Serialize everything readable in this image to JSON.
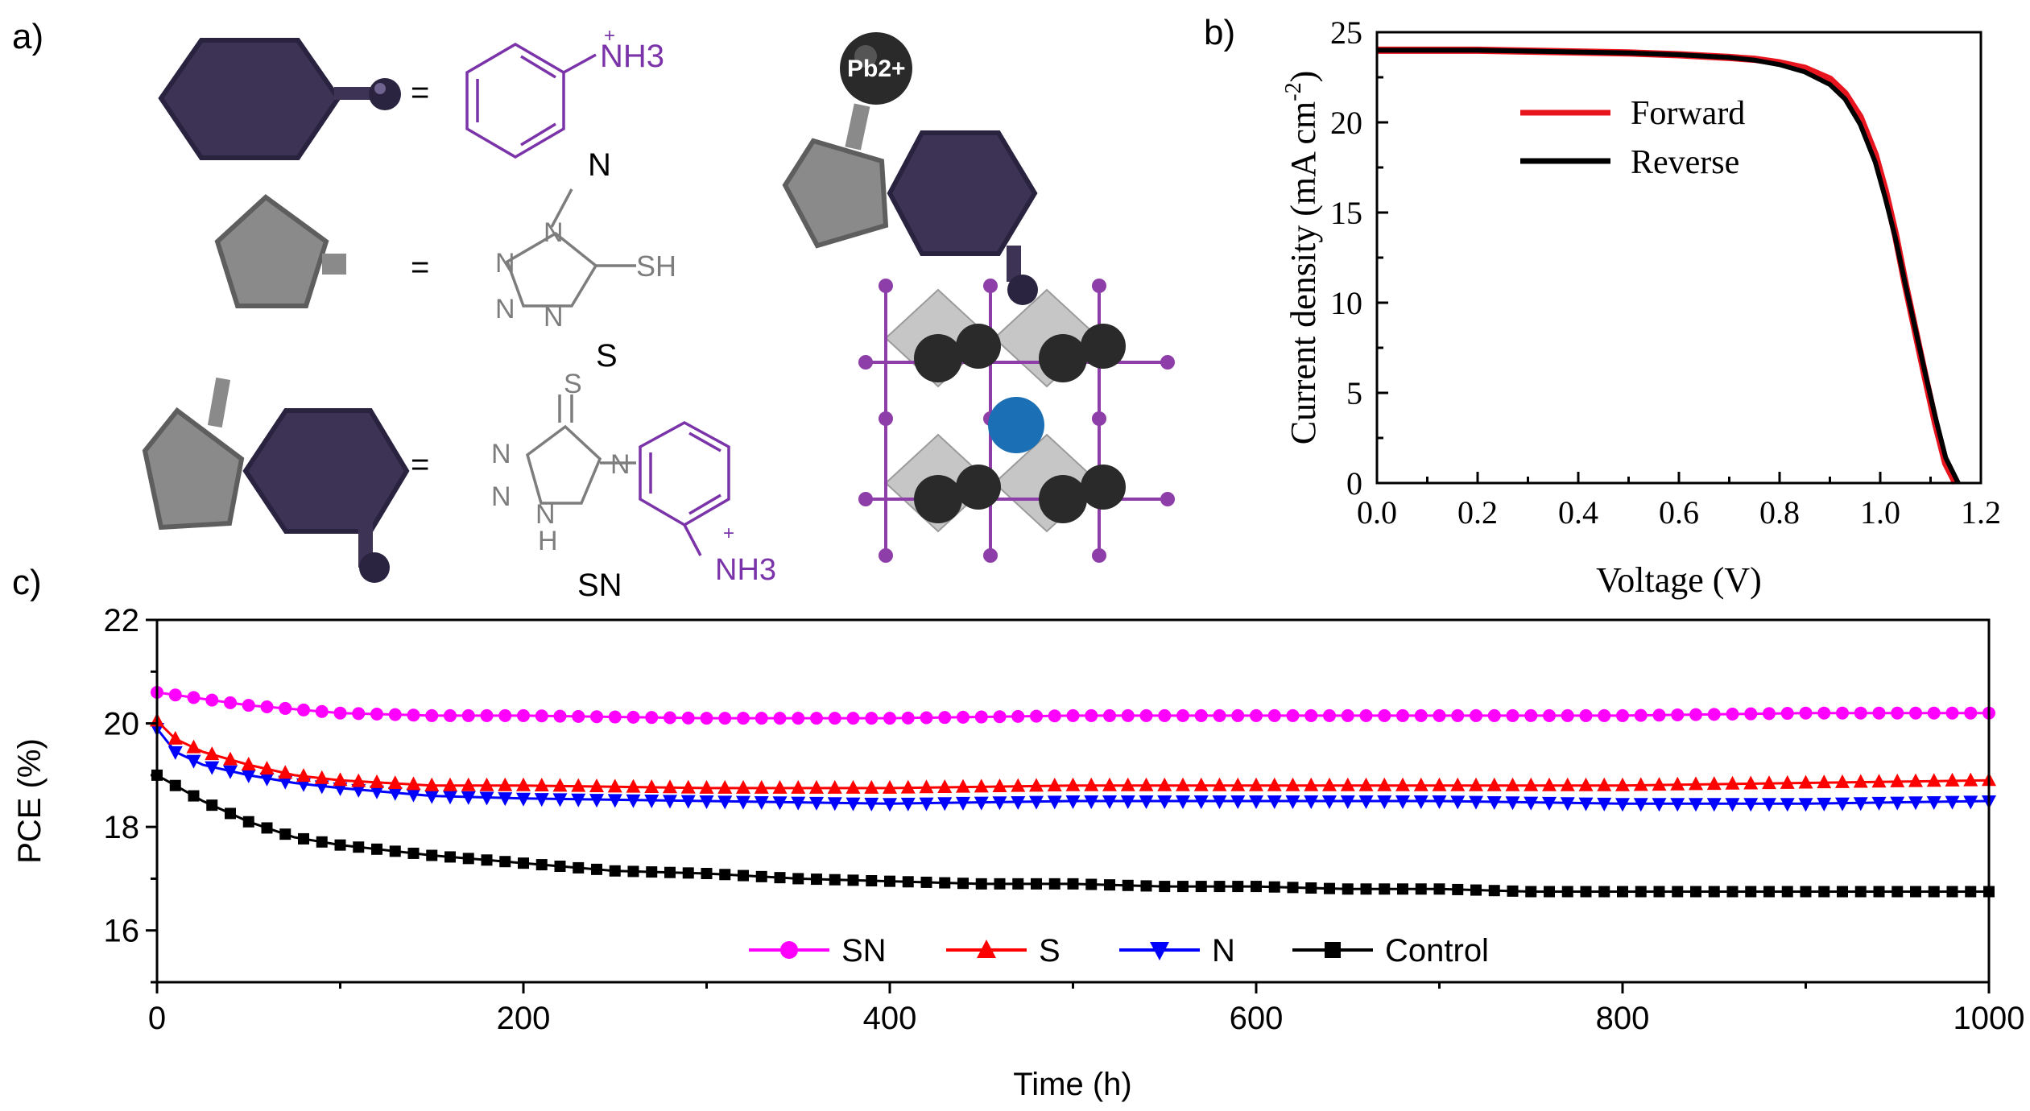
{
  "panel_labels": {
    "a": "a)",
    "b": "b)",
    "c": "c)"
  },
  "legend_a": {
    "aniline": {
      "nh3": "NH3",
      "plus": "+",
      "label": "N"
    },
    "tetrazole": {
      "ring_n": "N",
      "sh": "SH",
      "label": "S"
    },
    "hybrid": {
      "s_atom": "S",
      "ring_n": "N",
      "nh": "H",
      "nh3": "NH3",
      "plus": "+",
      "label": "SN"
    },
    "equals": "=",
    "pb_ion": "Pb2+"
  },
  "colors": {
    "purple_molecule": "#7a33a8",
    "dark_purple_block": "#3d3355",
    "gray_block": "#8a8a8a",
    "gray_structure": "#9a9a9a",
    "forward": "#e8141e",
    "reverse": "#000000",
    "sn_series": "#ff00ff",
    "s_series": "#ff0000",
    "n_series": "#0000ff",
    "control_series": "#000000",
    "octahedral_blue": "#1a6fb5"
  },
  "chart_data": [
    {
      "type": "line",
      "panel": "b",
      "xlabel": "Voltage (V)",
      "ylabel": "Current density (mA cm",
      "ylabel_sup": "-2",
      "ylabel_close": ")",
      "xlim": [
        0.0,
        1.2
      ],
      "ylim": [
        0,
        25
      ],
      "xticks": [
        "0.0",
        "0.2",
        "0.4",
        "0.6",
        "0.8",
        "1.0",
        "1.2"
      ],
      "yticks": [
        "0",
        "5",
        "10",
        "15",
        "20",
        "25"
      ],
      "legend_placement": "top-left",
      "series": [
        {
          "name": "Forward",
          "x": [
            0.0,
            0.1,
            0.2,
            0.3,
            0.4,
            0.5,
            0.6,
            0.7,
            0.75,
            0.8,
            0.85,
            0.9,
            0.93,
            0.96,
            0.99,
            1.01,
            1.03,
            1.05,
            1.07,
            1.09,
            1.11,
            1.13,
            1.15
          ],
          "y": [
            24.0,
            24.0,
            24.0,
            23.95,
            23.9,
            23.85,
            23.75,
            23.6,
            23.5,
            23.3,
            23.0,
            22.4,
            21.6,
            20.3,
            18.2,
            16.2,
            13.8,
            11.0,
            8.4,
            5.8,
            3.3,
            1.1,
            0.0
          ]
        },
        {
          "name": "Reverse",
          "x": [
            0.0,
            0.1,
            0.2,
            0.3,
            0.4,
            0.5,
            0.6,
            0.7,
            0.75,
            0.8,
            0.85,
            0.9,
            0.93,
            0.96,
            0.99,
            1.01,
            1.03,
            1.05,
            1.07,
            1.09,
            1.11,
            1.13,
            1.155
          ],
          "y": [
            24.0,
            24.0,
            24.0,
            23.95,
            23.9,
            23.85,
            23.75,
            23.6,
            23.45,
            23.2,
            22.8,
            22.1,
            21.3,
            19.9,
            17.8,
            15.8,
            13.6,
            11.0,
            8.5,
            6.0,
            3.6,
            1.4,
            0.0
          ]
        }
      ]
    },
    {
      "type": "line",
      "panel": "c",
      "xlabel": "Time (h)",
      "ylabel": "PCE (%)",
      "xlim": [
        0,
        1000
      ],
      "ylim": [
        15,
        22
      ],
      "xticks": [
        "0",
        "200",
        "400",
        "600",
        "800",
        "1000"
      ],
      "yticks": [
        "16",
        "18",
        "20",
        "22"
      ],
      "legend_placement": "bottom-center",
      "series": [
        {
          "name": "SN",
          "marker": "circle",
          "x": [
            0,
            50,
            100,
            150,
            200,
            300,
            400,
            500,
            600,
            700,
            800,
            900,
            1000
          ],
          "y": [
            20.6,
            20.35,
            20.2,
            20.15,
            20.15,
            20.1,
            20.1,
            20.15,
            20.15,
            20.15,
            20.15,
            20.2,
            20.2
          ]
        },
        {
          "name": "S",
          "marker": "triangle-up",
          "x": [
            0,
            10,
            25,
            50,
            75,
            100,
            150,
            200,
            300,
            400,
            500,
            600,
            700,
            800,
            900,
            1000
          ],
          "y": [
            20.05,
            19.7,
            19.45,
            19.2,
            19.0,
            18.9,
            18.8,
            18.8,
            18.75,
            18.75,
            18.8,
            18.8,
            18.8,
            18.8,
            18.85,
            18.9
          ]
        },
        {
          "name": "N",
          "marker": "triangle-down",
          "x": [
            0,
            10,
            25,
            50,
            75,
            100,
            150,
            200,
            300,
            400,
            500,
            600,
            700,
            800,
            900,
            1000
          ],
          "y": [
            19.9,
            19.45,
            19.2,
            19.0,
            18.85,
            18.75,
            18.6,
            18.55,
            18.5,
            18.45,
            18.5,
            18.5,
            18.5,
            18.45,
            18.45,
            18.5
          ]
        },
        {
          "name": "Control",
          "marker": "square",
          "x": [
            0,
            10,
            25,
            50,
            75,
            100,
            150,
            200,
            250,
            300,
            350,
            400,
            450,
            500,
            550,
            600,
            650,
            700,
            750,
            800,
            850,
            900,
            950,
            1000
          ],
          "y": [
            19.0,
            18.8,
            18.5,
            18.1,
            17.8,
            17.65,
            17.45,
            17.3,
            17.15,
            17.1,
            17.0,
            16.95,
            16.9,
            16.9,
            16.85,
            16.85,
            16.8,
            16.8,
            16.75,
            16.75,
            16.75,
            16.75,
            16.75,
            16.75
          ]
        }
      ]
    }
  ]
}
